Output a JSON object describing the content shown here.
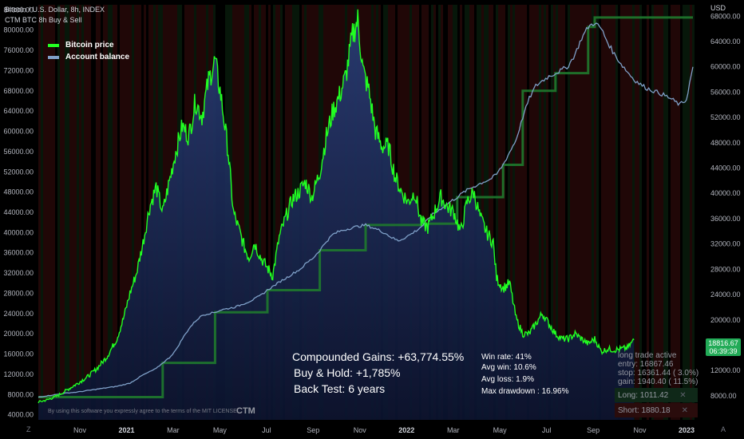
{
  "header": {
    "symbol_line": "Bitcoin / U.S. Dollar, 8h, INDEX",
    "indicator_line": "CTM BTC 8h Buy & Sell"
  },
  "currency": "USD",
  "legend": [
    {
      "label": "Bitcoin price",
      "color": "#22ff22"
    },
    {
      "label": "Account balance",
      "color": "#7fa0c8"
    }
  ],
  "stats": {
    "compounded": "Compounded Gains:  +63,774.55%",
    "buyhold": "Buy & Hold:  +1,785%",
    "backtest": "Back Test:  6 years",
    "winrate": "Win rate:  41%",
    "avgwin": "Avg win:  10.6%",
    "avgloss": "Avg loss:  1.9%",
    "maxdd": "Max drawdown :  16.96%"
  },
  "trade_info": {
    "line1": "long trade active",
    "line2": "entry:  16867.46",
    "line3": "stop:   16361.44 ( 3.0%)",
    "line4": "gain:   1940.40 ( 11.5%)"
  },
  "buttons": {
    "long": "Long:  1011.42",
    "short": "Short:  1880.18",
    "close_glyph": "✕"
  },
  "price_tag": {
    "price": "18816.67",
    "countdown": "06:39:39"
  },
  "watermark": "By using this software you expressly agree to the terms of the MIT LICENSE",
  "brand": "CTM",
  "corners": {
    "left": "Z",
    "right": "A"
  },
  "chart_data": {
    "type": "line",
    "x_tick_labels": [
      "Nov",
      "2021",
      "Mar",
      "May",
      "Jul",
      "Sep",
      "Nov",
      "2022",
      "Mar",
      "May",
      "Jul",
      "Sep",
      "Nov",
      "2023"
    ],
    "left_axis": {
      "ticks": [
        4000,
        8000,
        12000,
        16000,
        20000,
        24000,
        28000,
        32000,
        36000,
        40000,
        44000,
        48000,
        52000,
        56000,
        60000,
        64000,
        68000,
        72000,
        76000,
        80000,
        84000
      ],
      "ylim": [
        3000,
        85000
      ]
    },
    "right_axis": {
      "ticks": [
        8000,
        12000,
        16000,
        20000,
        24000,
        28000,
        32000,
        36000,
        40000,
        44000,
        48000,
        52000,
        56000,
        60000,
        64000,
        68000
      ],
      "ylim": [
        4200,
        69800
      ]
    },
    "series": [
      {
        "name": "Bitcoin price",
        "axis": "left",
        "color": "#22ff22",
        "points": [
          [
            0,
            6500
          ],
          [
            1.5,
            7000
          ],
          [
            3,
            7800
          ],
          [
            4.5,
            9000
          ],
          [
            6,
            10200
          ],
          [
            7.5,
            11500
          ],
          [
            9,
            13200
          ],
          [
            10.5,
            15500
          ],
          [
            12,
            19000
          ],
          [
            13,
            23000
          ],
          [
            14,
            28000
          ],
          [
            15,
            32000
          ],
          [
            16,
            38000
          ],
          [
            17,
            45000
          ],
          [
            18,
            49000
          ],
          [
            19,
            44000
          ],
          [
            20,
            50000
          ],
          [
            21,
            56000
          ],
          [
            22,
            61000
          ],
          [
            23,
            59000
          ],
          [
            24,
            66000
          ],
          [
            25,
            63000
          ],
          [
            26,
            70000
          ],
          [
            27,
            74000
          ],
          [
            28,
            66000
          ],
          [
            29,
            56000
          ],
          [
            29.8,
            44000
          ],
          [
            30.8,
            40000
          ],
          [
            31.5,
            37000
          ],
          [
            32.2,
            35000
          ],
          [
            33,
            38000
          ],
          [
            34,
            35000
          ],
          [
            35,
            33000
          ],
          [
            35.8,
            31500
          ],
          [
            36.8,
            39000
          ],
          [
            37.8,
            43000
          ],
          [
            38.8,
            46500
          ],
          [
            39.8,
            48000
          ],
          [
            40.8,
            50000
          ],
          [
            41.8,
            47000
          ],
          [
            43,
            52000
          ],
          [
            44,
            59000
          ],
          [
            45,
            64000
          ],
          [
            46,
            67000
          ],
          [
            47,
            71000
          ],
          [
            48,
            79000
          ],
          [
            48.8,
            82000
          ],
          [
            49.6,
            72000
          ],
          [
            50.5,
            68000
          ],
          [
            51.5,
            60000
          ],
          [
            52.5,
            57000
          ],
          [
            53.5,
            57000
          ],
          [
            54.5,
            51000
          ],
          [
            55.5,
            48000
          ],
          [
            56.5,
            46000
          ],
          [
            57.5,
            48000
          ],
          [
            58.5,
            42000
          ],
          [
            59.5,
            41000
          ],
          [
            60.5,
            44000
          ],
          [
            61.5,
            47000
          ],
          [
            62.5,
            45000
          ],
          [
            63.5,
            44000
          ],
          [
            64.5,
            40000
          ],
          [
            65.5,
            46000
          ],
          [
            66.5,
            48000
          ],
          [
            67.5,
            43000
          ],
          [
            68.5,
            40000
          ],
          [
            69.5,
            38000
          ],
          [
            70,
            31000
          ],
          [
            71,
            29000
          ],
          [
            72,
            30000
          ],
          [
            73,
            23000
          ],
          [
            74,
            20000
          ],
          [
            75,
            20000
          ],
          [
            76,
            22000
          ],
          [
            77,
            24000
          ],
          [
            78,
            22000
          ],
          [
            79,
            20000
          ],
          [
            80,
            19000
          ],
          [
            81,
            19000
          ],
          [
            82,
            20000
          ],
          [
            83,
            19000
          ],
          [
            84,
            18000
          ],
          [
            85,
            19000
          ],
          [
            86,
            16500
          ],
          [
            87,
            17000
          ],
          [
            88,
            16800
          ],
          [
            89,
            17000
          ],
          [
            90,
            17200
          ],
          [
            91,
            18816
          ]
        ]
      },
      {
        "name": "Account balance",
        "axis": "right",
        "color": "#7fa0c8",
        "points": [
          [
            0,
            7800
          ],
          [
            2,
            8100
          ],
          [
            4,
            8400
          ],
          [
            6,
            8600
          ],
          [
            8,
            8900
          ],
          [
            10,
            9200
          ],
          [
            12,
            9500
          ],
          [
            14,
            10000
          ],
          [
            16,
            11300
          ],
          [
            18,
            12300
          ],
          [
            19,
            13200
          ],
          [
            20,
            14000
          ],
          [
            21,
            15200
          ],
          [
            22,
            17000
          ],
          [
            23,
            18600
          ],
          [
            24,
            19800
          ],
          [
            25,
            20700
          ],
          [
            26,
            21000
          ],
          [
            27,
            21200
          ],
          [
            28,
            21600
          ],
          [
            29,
            21800
          ],
          [
            30,
            22000
          ],
          [
            31,
            22400
          ],
          [
            32,
            22800
          ],
          [
            33,
            23300
          ],
          [
            34,
            23900
          ],
          [
            35,
            24700
          ],
          [
            36,
            25400
          ],
          [
            37,
            26100
          ],
          [
            38,
            26700
          ],
          [
            39,
            27400
          ],
          [
            40,
            28000
          ],
          [
            41,
            29000
          ],
          [
            42,
            29800
          ],
          [
            43,
            31000
          ],
          [
            44,
            32400
          ],
          [
            45,
            33500
          ],
          [
            46,
            34000
          ],
          [
            47,
            34300
          ],
          [
            48,
            34600
          ],
          [
            49,
            34800
          ],
          [
            50,
            35000
          ],
          [
            51,
            34600
          ],
          [
            52,
            34200
          ],
          [
            53,
            33700
          ],
          [
            54,
            33000
          ],
          [
            55,
            32500
          ],
          [
            56,
            33000
          ],
          [
            57,
            33600
          ],
          [
            58,
            34300
          ],
          [
            59,
            35200
          ],
          [
            60,
            36500
          ],
          [
            61,
            37200
          ],
          [
            62,
            38000
          ],
          [
            63,
            38700
          ],
          [
            64,
            39400
          ],
          [
            65,
            40200
          ],
          [
            66,
            40800
          ],
          [
            67,
            41300
          ],
          [
            68,
            41800
          ],
          [
            69,
            42200
          ],
          [
            70,
            43000
          ],
          [
            71,
            44500
          ],
          [
            72,
            46500
          ],
          [
            73,
            48500
          ],
          [
            74,
            52000
          ],
          [
            75,
            55000
          ],
          [
            76,
            57000
          ],
          [
            77,
            57800
          ],
          [
            78,
            58500
          ],
          [
            79,
            59000
          ],
          [
            80,
            59500
          ],
          [
            81,
            60200
          ],
          [
            82,
            62000
          ],
          [
            83,
            64500
          ],
          [
            84,
            66300
          ],
          [
            85,
            67000
          ],
          [
            86,
            66000
          ],
          [
            87,
            63800
          ],
          [
            88,
            62000
          ],
          [
            89,
            60500
          ],
          [
            90,
            59200
          ],
          [
            91,
            58000
          ],
          [
            92,
            57200
          ],
          [
            93,
            56600
          ],
          [
            94,
            56200
          ],
          [
            95,
            55800
          ],
          [
            96,
            55300
          ],
          [
            97,
            54700
          ],
          [
            98,
            54000
          ],
          [
            99,
            54800
          ],
          [
            100,
            60000
          ]
        ]
      },
      {
        "name": "",
        "axis": "right",
        "color": "#1f7a2e",
        "points": [
          [
            0,
            7800
          ],
          [
            19,
            13200
          ],
          [
            27,
            21200
          ],
          [
            35,
            24700
          ],
          [
            43,
            31000
          ],
          [
            50,
            35000
          ],
          [
            59,
            35200
          ],
          [
            64,
            39400
          ],
          [
            71,
            44500
          ],
          [
            74,
            56200
          ],
          [
            79,
            59000
          ],
          [
            84,
            66300
          ],
          [
            85,
            67800
          ],
          [
            100,
            67800
          ]
        ]
      }
    ]
  }
}
